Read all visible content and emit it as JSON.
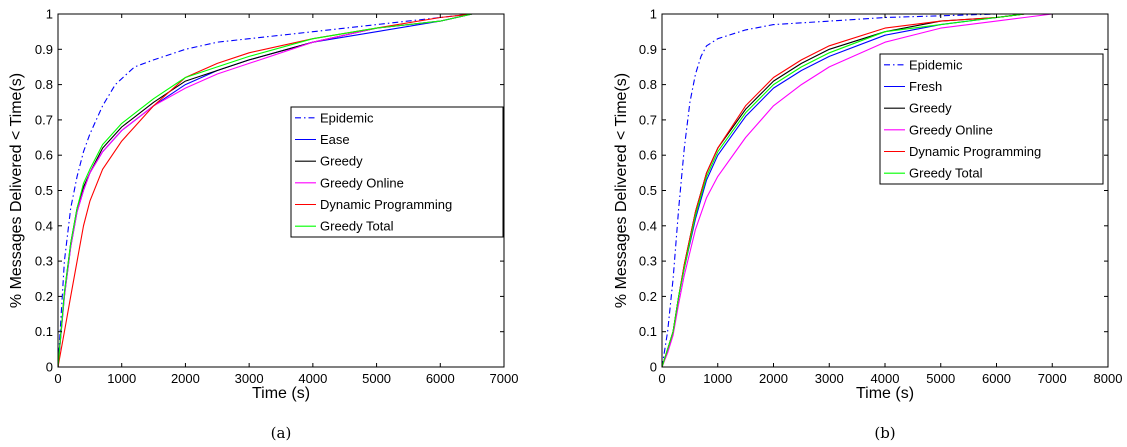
{
  "chart_data": [
    {
      "type": "line",
      "caption": "(a)",
      "xlabel": "Time (s)",
      "ylabel": "% Messages Delivered < Time(s)",
      "xlim": [
        0,
        7000
      ],
      "ylim": [
        0,
        1
      ],
      "xticks": [
        0,
        1000,
        2000,
        3000,
        4000,
        5000,
        6000,
        7000
      ],
      "yticks": [
        0,
        0.1,
        0.2,
        0.3,
        0.4,
        0.5,
        0.6,
        0.7,
        0.8,
        0.9,
        1
      ],
      "grid": false,
      "legend_position": "center-right",
      "series": [
        {
          "name": "Epidemic",
          "color": "#0000ff",
          "style": "dashdot",
          "x": [
            0,
            100,
            200,
            300,
            400,
            500,
            700,
            900,
            1200,
            1500,
            2000,
            2500,
            3000,
            4000,
            5000,
            6000,
            6500,
            7000
          ],
          "y": [
            0,
            0.3,
            0.45,
            0.54,
            0.61,
            0.66,
            0.74,
            0.8,
            0.85,
            0.87,
            0.9,
            0.92,
            0.93,
            0.95,
            0.97,
            0.99,
            1.0,
            1.0
          ]
        },
        {
          "name": "Ease",
          "color": "#0000ff",
          "style": "solid",
          "x": [
            0,
            100,
            200,
            300,
            400,
            500,
            700,
            1000,
            1500,
            2000,
            2500,
            3000,
            4000,
            5000,
            6000,
            6500,
            7000
          ],
          "y": [
            0,
            0.2,
            0.34,
            0.44,
            0.5,
            0.55,
            0.61,
            0.67,
            0.74,
            0.8,
            0.84,
            0.87,
            0.92,
            0.95,
            0.98,
            1.0,
            1.0
          ]
        },
        {
          "name": "Greedy",
          "color": "#000000",
          "style": "solid",
          "x": [
            0,
            100,
            200,
            300,
            400,
            500,
            700,
            1000,
            1500,
            2000,
            2500,
            3000,
            4000,
            5000,
            6000,
            6500,
            7000
          ],
          "y": [
            0,
            0.21,
            0.35,
            0.45,
            0.51,
            0.55,
            0.62,
            0.68,
            0.75,
            0.81,
            0.84,
            0.87,
            0.92,
            0.96,
            0.98,
            1.0,
            1.0
          ]
        },
        {
          "name": "Greedy Online",
          "color": "#ff00ff",
          "style": "solid",
          "x": [
            0,
            100,
            200,
            300,
            400,
            500,
            700,
            1000,
            1500,
            2000,
            2500,
            3000,
            4000,
            5000,
            6000,
            6500,
            7000
          ],
          "y": [
            0,
            0.2,
            0.34,
            0.44,
            0.5,
            0.55,
            0.61,
            0.67,
            0.74,
            0.79,
            0.83,
            0.86,
            0.92,
            0.96,
            0.98,
            1.0,
            1.0
          ]
        },
        {
          "name": "Dynamic Programming",
          "color": "#ff0000",
          "style": "solid",
          "x": [
            0,
            100,
            200,
            300,
            400,
            500,
            700,
            1000,
            1500,
            2000,
            2500,
            3000,
            4000,
            5000,
            6000,
            6500,
            7000
          ],
          "y": [
            0,
            0.1,
            0.2,
            0.3,
            0.4,
            0.47,
            0.56,
            0.64,
            0.74,
            0.82,
            0.86,
            0.89,
            0.93,
            0.96,
            0.99,
            1.0,
            1.0
          ]
        },
        {
          "name": "Greedy Total",
          "color": "#00ff00",
          "style": "solid",
          "x": [
            0,
            100,
            200,
            300,
            400,
            500,
            700,
            1000,
            1500,
            2000,
            2500,
            3000,
            4000,
            5000,
            6000,
            6500,
            7000
          ],
          "y": [
            0,
            0.21,
            0.35,
            0.45,
            0.52,
            0.56,
            0.63,
            0.69,
            0.76,
            0.82,
            0.85,
            0.88,
            0.93,
            0.96,
            0.98,
            1.0,
            1.0
          ]
        }
      ]
    },
    {
      "type": "line",
      "caption": "(b)",
      "xlabel": "Time (s)",
      "ylabel": "% Messages Delivered < Time(s)",
      "xlim": [
        0,
        8000
      ],
      "ylim": [
        0,
        1
      ],
      "xticks": [
        0,
        1000,
        2000,
        3000,
        4000,
        5000,
        6000,
        7000,
        8000
      ],
      "yticks": [
        0,
        0.1,
        0.2,
        0.3,
        0.4,
        0.5,
        0.6,
        0.7,
        0.8,
        0.9,
        1
      ],
      "grid": false,
      "legend_position": "top-right",
      "series": [
        {
          "name": "Epidemic",
          "color": "#0000ff",
          "style": "dashdot",
          "x": [
            0,
            100,
            200,
            300,
            400,
            500,
            600,
            700,
            800,
            1000,
            1200,
            1500,
            2000,
            3000,
            4000,
            5000,
            6000,
            6500,
            7000
          ],
          "y": [
            0,
            0.1,
            0.25,
            0.45,
            0.62,
            0.75,
            0.83,
            0.88,
            0.91,
            0.93,
            0.94,
            0.955,
            0.97,
            0.98,
            0.99,
            0.995,
            1.0,
            1.0,
            1.0
          ]
        },
        {
          "name": "Fresh",
          "color": "#0000ff",
          "style": "solid",
          "x": [
            0,
            100,
            200,
            300,
            400,
            600,
            800,
            1000,
            1500,
            2000,
            2500,
            3000,
            4000,
            5000,
            6000,
            6500,
            7000
          ],
          "y": [
            0,
            0.05,
            0.1,
            0.2,
            0.28,
            0.42,
            0.53,
            0.6,
            0.71,
            0.79,
            0.84,
            0.88,
            0.94,
            0.97,
            0.99,
            1.0,
            1.0
          ]
        },
        {
          "name": "Greedy",
          "color": "#000000",
          "style": "solid",
          "x": [
            0,
            100,
            200,
            300,
            400,
            600,
            800,
            1000,
            1500,
            2000,
            2500,
            3000,
            4000,
            5000,
            6000,
            6500,
            7000
          ],
          "y": [
            0,
            0.05,
            0.1,
            0.2,
            0.29,
            0.44,
            0.55,
            0.62,
            0.73,
            0.81,
            0.86,
            0.9,
            0.95,
            0.98,
            0.99,
            1.0,
            1.0
          ]
        },
        {
          "name": "Greedy Online",
          "color": "#ff00ff",
          "style": "solid",
          "x": [
            0,
            100,
            200,
            300,
            400,
            600,
            800,
            1000,
            1500,
            2000,
            2500,
            3000,
            4000,
            5000,
            6000,
            6500,
            7000
          ],
          "y": [
            0,
            0.04,
            0.09,
            0.18,
            0.26,
            0.39,
            0.48,
            0.54,
            0.65,
            0.74,
            0.8,
            0.85,
            0.92,
            0.96,
            0.98,
            0.99,
            1.0
          ]
        },
        {
          "name": "Dynamic Programming",
          "color": "#ff0000",
          "style": "solid",
          "x": [
            0,
            100,
            200,
            300,
            400,
            600,
            800,
            1000,
            1500,
            2000,
            2500,
            3000,
            4000,
            5000,
            6000,
            6500,
            7000
          ],
          "y": [
            0,
            0.05,
            0.1,
            0.2,
            0.29,
            0.44,
            0.55,
            0.62,
            0.74,
            0.82,
            0.87,
            0.91,
            0.96,
            0.98,
            0.99,
            1.0,
            1.0
          ]
        },
        {
          "name": "Greedy Total",
          "color": "#00ff00",
          "style": "solid",
          "x": [
            0,
            100,
            200,
            300,
            400,
            600,
            800,
            1000,
            1500,
            2000,
            2500,
            3000,
            4000,
            5000,
            6000,
            6500,
            7000
          ],
          "y": [
            0,
            0.05,
            0.1,
            0.2,
            0.28,
            0.43,
            0.54,
            0.61,
            0.72,
            0.8,
            0.85,
            0.89,
            0.95,
            0.97,
            0.99,
            1.0,
            1.0
          ]
        }
      ]
    }
  ]
}
